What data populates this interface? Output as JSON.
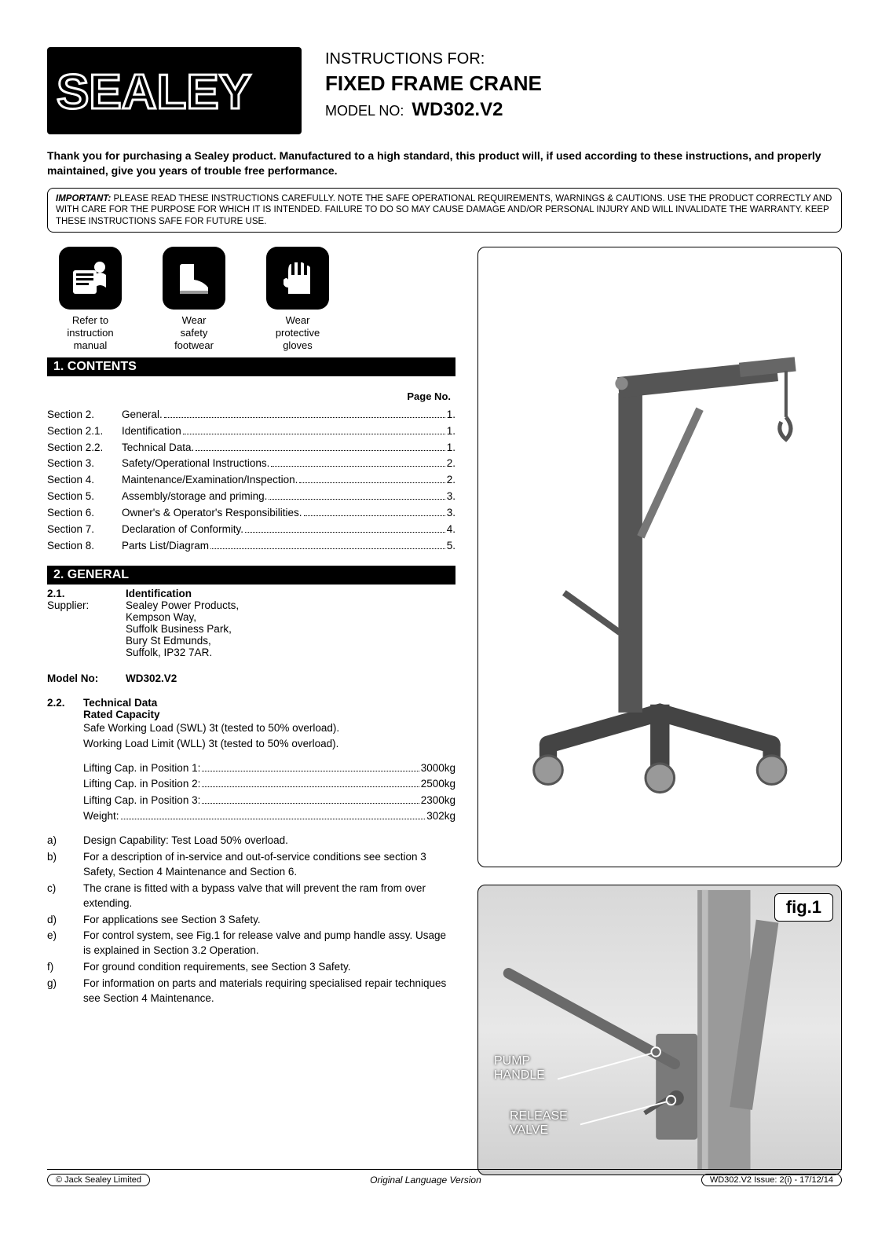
{
  "brand": "SEALEY",
  "header": {
    "instructions_for": "INSTRUCTIONS FOR:",
    "product_name": "FIXED FRAME CRANE",
    "model_label": "MODEL NO:",
    "model_no": "WD302.V2"
  },
  "intro_paragraph": "Thank you for purchasing a Sealey product. Manufactured to a high standard, this product will, if used according to these instructions, and properly maintained, give you years of trouble free performance.",
  "important_box": {
    "label": "IMPORTANT:",
    "text": "PLEASE READ THESE INSTRUCTIONS CAREFULLY. NOTE THE SAFE OPERATIONAL REQUIREMENTS, WARNINGS & CAUTIONS. USE THE PRODUCT CORRECTLY AND WITH CARE FOR THE PURPOSE FOR WHICH IT IS INTENDED. FAILURE TO DO SO MAY CAUSE DAMAGE AND/OR PERSONAL INJURY AND WILL INVALIDATE THE WARRANTY. KEEP THESE INSTRUCTIONS SAFE FOR FUTURE USE."
  },
  "safety_icons": [
    {
      "name": "manual-icon",
      "caption_l1": "Refer to",
      "caption_l2": "instruction",
      "caption_l3": "manual"
    },
    {
      "name": "boot-icon",
      "caption_l1": "Wear",
      "caption_l2": "safety",
      "caption_l3": "footwear"
    },
    {
      "name": "glove-icon",
      "caption_l1": "Wear",
      "caption_l2": "protective",
      "caption_l3": "gloves"
    }
  ],
  "section_bars": {
    "contents": "1.   CONTENTS",
    "general": "2.  GENERAL"
  },
  "page_no_label": "Page No.",
  "toc": [
    {
      "sec": "Section 2.",
      "title": "General.",
      "page": "1."
    },
    {
      "sec": "Section 2.1.",
      "title": "Identification",
      "page": "1."
    },
    {
      "sec": "Section 2.2.",
      "title": "Technical Data.",
      "page": "1."
    },
    {
      "sec": "Section 3.",
      "title": "Safety/Operational Instructions.",
      "page": "2."
    },
    {
      "sec": "Section 4.",
      "title": "Maintenance/Examination/Inspection.",
      "page": "2."
    },
    {
      "sec": "Section 5.",
      "title": "Assembly/storage and priming.",
      "page": "3."
    },
    {
      "sec": "Section 6.",
      "title": "Owner's & Operator's Responsibilities.",
      "page": "3."
    },
    {
      "sec": "Section 7.",
      "title": "Declaration of Conformity.",
      "page": "4."
    },
    {
      "sec": "Section 8.",
      "title": "Parts List/Diagram",
      "page": "5."
    }
  ],
  "identification": {
    "num": "2.1.",
    "title": "Identification",
    "supplier_label": "Supplier:",
    "supplier_lines": [
      "Sealey Power Products,",
      "Kempson Way,",
      "Suffolk Business Park,",
      "Bury St Edmunds,",
      "Suffolk, IP32 7AR."
    ],
    "model_label": "Model No:",
    "model_value": "WD302.V2"
  },
  "technical": {
    "num": "2.2.",
    "title": "Technical Data",
    "rated_capacity_label": "Rated Capacity",
    "swl": "Safe Working Load (SWL) 3t (tested to 50% overload).",
    "wll": "Working Load Limit (WLL) 3t (tested to 50% overload).",
    "capacities": [
      {
        "label": "Lifting Cap. in Position 1:",
        "value": "3000kg"
      },
      {
        "label": "Lifting Cap. in Position 2:",
        "value": "2500kg"
      },
      {
        "label": "Lifting Cap. in Position 3:",
        "value": "2300kg"
      },
      {
        "label": "Weight:",
        "value": "302kg"
      }
    ]
  },
  "notes": [
    {
      "letter": "a)",
      "text": "Design Capability: Test Load 50% overload."
    },
    {
      "letter": "b)",
      "text": "For a description of in-service and out-of-service conditions see section 3 Safety, Section 4 Maintenance and Section 6."
    },
    {
      "letter": "c)",
      "text": "The crane is fitted with a bypass valve that will prevent the ram from over extending."
    },
    {
      "letter": "d)",
      "text": "For applications see Section 3 Safety."
    },
    {
      "letter": "e)",
      "text": "For control system, see Fig.1 for release valve and pump handle assy. Usage is explained in Section 3.2 Operation."
    },
    {
      "letter": "f)",
      "text": "For ground condition requirements, see Section 3 Safety."
    },
    {
      "letter": "g)",
      "text": "For information on parts and materials requiring specialised repair techniques see Section 4 Maintenance."
    }
  ],
  "fig1": {
    "label": "fig.1",
    "callouts": {
      "pump_handle": "PUMP\nHANDLE",
      "release_valve": "RELEASE\nVALVE"
    }
  },
  "footer": {
    "left": "© Jack Sealey Limited",
    "center": "Original Language Version",
    "right": "WD302.V2   Issue: 2(i) - 17/12/14"
  },
  "colors": {
    "black": "#000000",
    "white": "#ffffff",
    "figure_bg": "#d8d8d8"
  }
}
